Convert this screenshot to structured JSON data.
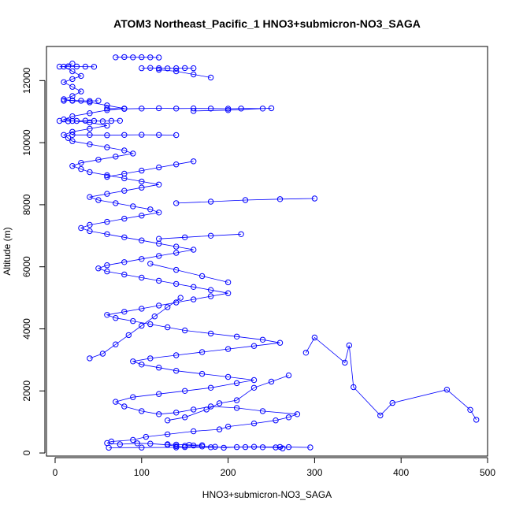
{
  "chart_data": {
    "type": "line",
    "title": "ATOM3 Northeast_Pacific_1 HNO3+submicron-NO3_SAGA",
    "xlabel": "HNO3+submicron-NO3_SAGA",
    "ylabel": "Altitude (m)",
    "xlim": [
      -10,
      500
    ],
    "ylim": [
      -100,
      13100
    ],
    "xticks": [
      0,
      100,
      200,
      300,
      400,
      500
    ],
    "yticks": [
      0,
      2000,
      4000,
      6000,
      8000,
      10000,
      12000
    ],
    "grid": false,
    "legend": "none",
    "series_color": "#0000ff",
    "marker": "open-circle",
    "series": [
      {
        "points": [
          [
            263,
            150
          ],
          [
            255,
            180
          ],
          [
            230,
            200
          ],
          [
            210,
            190
          ],
          [
            195,
            170
          ],
          [
            185,
            200
          ],
          [
            170,
            210
          ],
          [
            150,
            190
          ],
          [
            140,
            220
          ],
          [
            130,
            260
          ],
          [
            110,
            300
          ],
          [
            95,
            310
          ],
          [
            75,
            280
          ],
          [
            60,
            320
          ],
          [
            65,
            370
          ],
          [
            90,
            420
          ],
          [
            105,
            520
          ],
          [
            130,
            600
          ],
          [
            160,
            700
          ],
          [
            190,
            760
          ],
          [
            200,
            850
          ],
          [
            230,
            950
          ],
          [
            255,
            1050
          ],
          [
            270,
            1150
          ],
          [
            280,
            1250
          ],
          [
            240,
            1350
          ],
          [
            210,
            1450
          ],
          [
            180,
            1500
          ],
          [
            160,
            1400
          ],
          [
            140,
            1300
          ],
          [
            120,
            1250
          ],
          [
            100,
            1350
          ],
          [
            80,
            1500
          ],
          [
            70,
            1650
          ],
          [
            90,
            1800
          ],
          [
            120,
            1900
          ],
          [
            150,
            2000
          ],
          [
            180,
            2100
          ],
          [
            210,
            2250
          ],
          [
            230,
            2350
          ],
          [
            200,
            2450
          ],
          [
            170,
            2550
          ],
          [
            140,
            2650
          ],
          [
            120,
            2750
          ],
          [
            100,
            2850
          ],
          [
            90,
            2950
          ],
          [
            110,
            3050
          ],
          [
            140,
            3150
          ],
          [
            170,
            3250
          ],
          [
            200,
            3350
          ],
          [
            230,
            3450
          ],
          [
            260,
            3550
          ],
          [
            240,
            3650
          ],
          [
            210,
            3750
          ],
          [
            180,
            3850
          ],
          [
            150,
            3950
          ],
          [
            130,
            4050
          ],
          [
            110,
            4150
          ],
          [
            90,
            4250
          ],
          [
            70,
            4350
          ],
          [
            60,
            4450
          ],
          [
            80,
            4550
          ],
          [
            100,
            4650
          ],
          [
            120,
            4750
          ],
          [
            140,
            4850
          ],
          [
            160,
            4950
          ],
          [
            180,
            5050
          ],
          [
            200,
            5150
          ],
          [
            180,
            5250
          ],
          [
            160,
            5350
          ],
          [
            140,
            5450
          ],
          [
            120,
            5550
          ],
          [
            100,
            5650
          ],
          [
            80,
            5750
          ],
          [
            60,
            5850
          ],
          [
            50,
            5950
          ],
          [
            60,
            6050
          ],
          [
            80,
            6150
          ],
          [
            100,
            6250
          ],
          [
            120,
            6350
          ],
          [
            140,
            6450
          ],
          [
            160,
            6550
          ],
          [
            140,
            6650
          ],
          [
            120,
            6750
          ],
          [
            100,
            6850
          ],
          [
            80,
            6950
          ],
          [
            60,
            7050
          ],
          [
            40,
            7150
          ],
          [
            30,
            7250
          ],
          [
            40,
            7350
          ],
          [
            60,
            7450
          ],
          [
            80,
            7550
          ],
          [
            100,
            7650
          ],
          [
            120,
            7750
          ],
          [
            110,
            7850
          ],
          [
            90,
            7950
          ],
          [
            70,
            8050
          ],
          [
            50,
            8150
          ],
          [
            40,
            8250
          ],
          [
            60,
            8350
          ],
          [
            80,
            8450
          ],
          [
            100,
            8550
          ],
          [
            120,
            8650
          ],
          [
            100,
            8750
          ],
          [
            80,
            8850
          ],
          [
            60,
            8950
          ],
          [
            40,
            9050
          ],
          [
            30,
            9150
          ],
          [
            20,
            9250
          ],
          [
            30,
            9350
          ],
          [
            50,
            9450
          ],
          [
            70,
            9550
          ],
          [
            90,
            9650
          ],
          [
            80,
            9750
          ],
          [
            60,
            9850
          ],
          [
            40,
            9950
          ],
          [
            20,
            10050
          ],
          [
            15,
            10150
          ],
          [
            10,
            10250
          ],
          [
            20,
            10350
          ],
          [
            40,
            10450
          ],
          [
            60,
            10550
          ],
          [
            40,
            10650
          ],
          [
            20,
            10700
          ],
          [
            10,
            10750
          ],
          [
            20,
            10850
          ],
          [
            40,
            10950
          ],
          [
            60,
            11050
          ],
          [
            80,
            11100
          ],
          [
            60,
            11200
          ],
          [
            40,
            11300
          ],
          [
            20,
            11350
          ],
          [
            10,
            11400
          ],
          [
            20,
            11500
          ],
          [
            30,
            11650
          ],
          [
            20,
            11800
          ],
          [
            10,
            11950
          ],
          [
            20,
            12050
          ],
          [
            30,
            12150
          ],
          [
            20,
            12300
          ],
          [
            10,
            12450
          ],
          [
            20,
            12550
          ]
        ]
      },
      {
        "points": [
          [
            5,
            12450
          ],
          [
            15,
            12460
          ],
          [
            25,
            12455
          ],
          [
            35,
            12450
          ],
          [
            45,
            12445
          ]
        ]
      },
      {
        "points": [
          [
            100,
            12400
          ],
          [
            110,
            12410
          ],
          [
            120,
            12400
          ],
          [
            130,
            12395
          ],
          [
            140,
            12400
          ],
          [
            150,
            12405
          ],
          [
            160,
            12400
          ]
        ]
      },
      {
        "points": [
          [
            70,
            12750
          ],
          [
            80,
            12760
          ],
          [
            90,
            12750
          ],
          [
            100,
            12755
          ],
          [
            110,
            12750
          ],
          [
            120,
            12745
          ]
        ]
      },
      {
        "points": [
          [
            5,
            10700
          ],
          [
            15,
            10690
          ],
          [
            25,
            10700
          ],
          [
            35,
            10710
          ],
          [
            45,
            10700
          ],
          [
            55,
            10690
          ],
          [
            65,
            10700
          ],
          [
            75,
            10705
          ]
        ]
      },
      {
        "points": [
          [
            10,
            11350
          ],
          [
            20,
            11360
          ],
          [
            30,
            11350
          ],
          [
            40,
            11340
          ],
          [
            50,
            11350
          ]
        ]
      },
      {
        "points": [
          [
            60,
            11100
          ],
          [
            80,
            11090
          ],
          [
            100,
            11100
          ],
          [
            120,
            11110
          ],
          [
            140,
            11100
          ],
          [
            160,
            11105
          ],
          [
            180,
            11100
          ],
          [
            200,
            11095
          ],
          [
            215,
            11100
          ],
          [
            240,
            11100
          ],
          [
            250,
            11110
          ],
          [
            200,
            11050
          ],
          [
            160,
            11020
          ]
        ]
      },
      {
        "points": [
          [
            20,
            10250
          ],
          [
            40,
            10250
          ],
          [
            60,
            10240
          ],
          [
            80,
            10250
          ],
          [
            100,
            10255
          ],
          [
            120,
            10250
          ],
          [
            140,
            10245
          ]
        ]
      },
      {
        "points": [
          [
            300,
            8200
          ],
          [
            260,
            8180
          ],
          [
            220,
            8150
          ],
          [
            180,
            8100
          ],
          [
            140,
            8050
          ]
        ]
      },
      {
        "points": [
          [
            215,
            7050
          ],
          [
            180,
            7000
          ],
          [
            150,
            6950
          ],
          [
            120,
            6900
          ]
        ]
      },
      {
        "points": [
          [
            487,
            1070
          ],
          [
            480,
            1390
          ],
          [
            453,
            2040
          ],
          [
            390,
            1610
          ],
          [
            376,
            1210
          ],
          [
            345,
            2120
          ],
          [
            340,
            3470
          ],
          [
            335,
            2910
          ],
          [
            300,
            3720
          ],
          [
            290,
            3230
          ]
        ]
      },
      {
        "points": [
          [
            62,
            170
          ],
          [
            100,
            175
          ],
          [
            140,
            180
          ],
          [
            180,
            185
          ],
          [
            220,
            190
          ],
          [
            260,
            195
          ],
          [
            295,
            180
          ],
          [
            270,
            190
          ],
          [
            240,
            185
          ]
        ]
      },
      {
        "points": [
          [
            150,
            230
          ],
          [
            160,
            240
          ],
          [
            170,
            250
          ],
          [
            155,
            260
          ],
          [
            140,
            270
          ],
          [
            130,
            280
          ]
        ]
      },
      {
        "points": [
          [
            130,
            1050
          ],
          [
            150,
            1150
          ],
          [
            175,
            1400
          ],
          [
            190,
            1600
          ],
          [
            210,
            1700
          ],
          [
            230,
            2100
          ],
          [
            250,
            2300
          ],
          [
            270,
            2500
          ]
        ]
      },
      {
        "points": [
          [
            40,
            3050
          ],
          [
            55,
            3200
          ],
          [
            70,
            3500
          ],
          [
            85,
            3800
          ],
          [
            100,
            4100
          ],
          [
            115,
            4400
          ],
          [
            130,
            4700
          ],
          [
            145,
            5000
          ]
        ]
      },
      {
        "points": [
          [
            200,
            5500
          ],
          [
            170,
            5700
          ],
          [
            140,
            5900
          ],
          [
            110,
            6100
          ]
        ]
      },
      {
        "points": [
          [
            160,
            9400
          ],
          [
            140,
            9300
          ],
          [
            120,
            9200
          ],
          [
            100,
            9100
          ],
          [
            80,
            9000
          ],
          [
            60,
            8900
          ]
        ]
      },
      {
        "points": [
          [
            180,
            12100
          ],
          [
            160,
            12200
          ],
          [
            140,
            12300
          ],
          [
            120,
            12350
          ]
        ]
      }
    ]
  }
}
